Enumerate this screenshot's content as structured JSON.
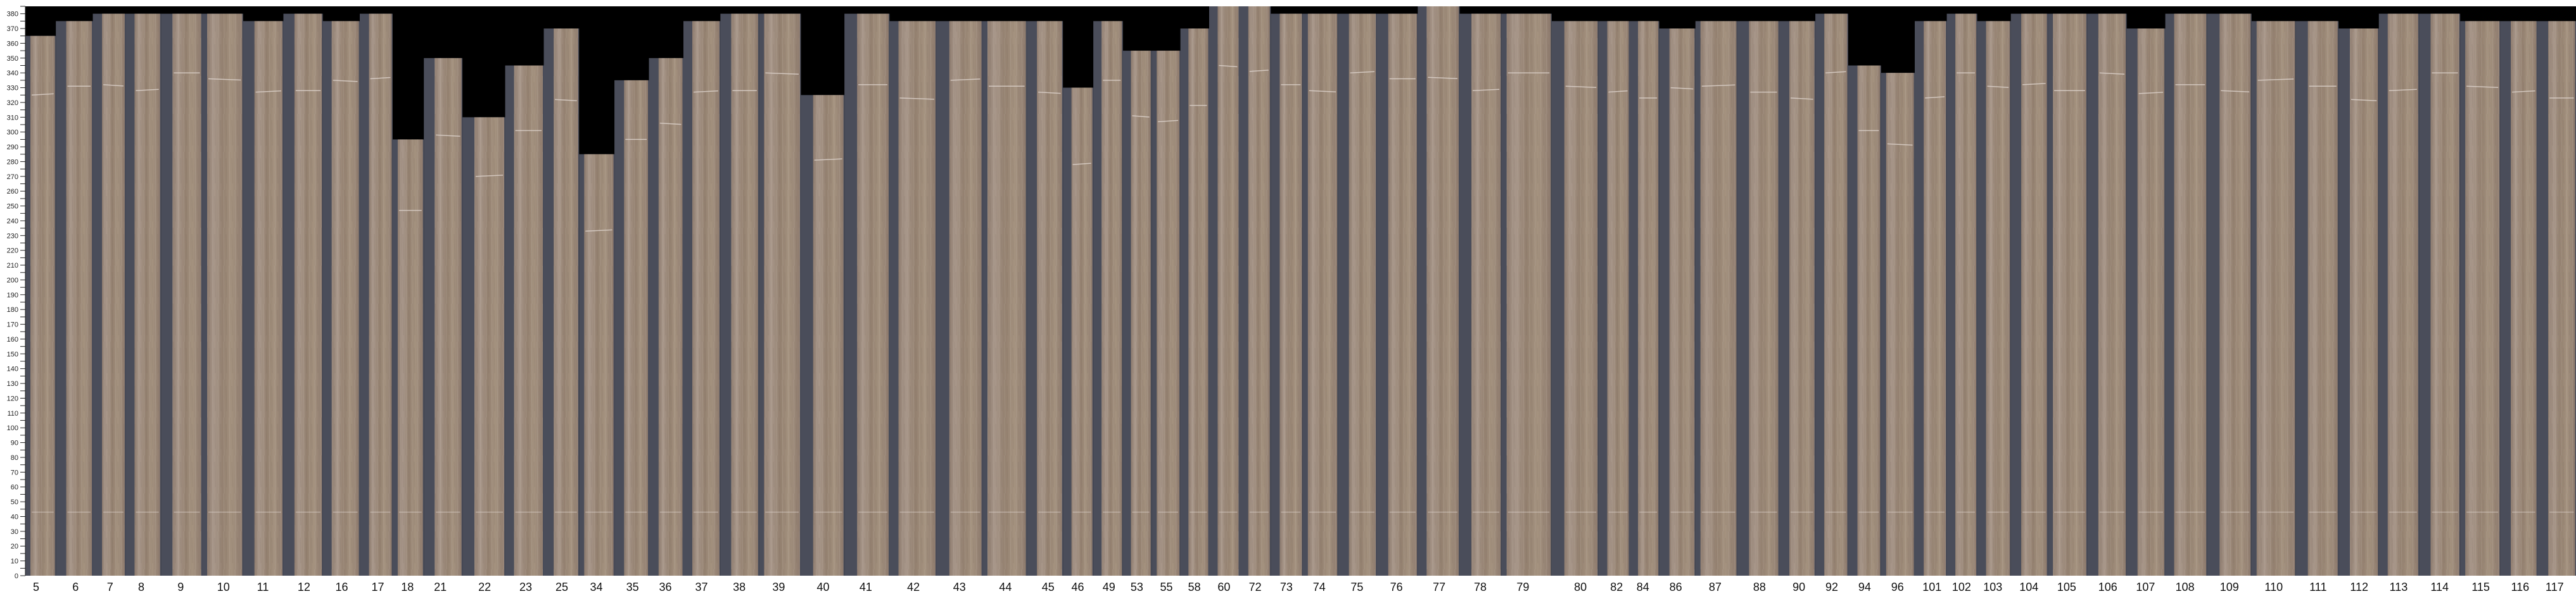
{
  "chart_data": {
    "type": "bar",
    "title": "",
    "xlabel": "",
    "ylabel": "",
    "ylim": [
      0,
      385
    ],
    "ytick_step": 5,
    "ylabel_step": 10,
    "grid": false,
    "colors": {
      "background": "#000000",
      "gap": "#4a4d5a",
      "wood": "#9c897b",
      "axis": "#222222"
    },
    "categories": [
      "5",
      "6",
      "7",
      "8",
      "9",
      "10",
      "11",
      "12",
      "16",
      "17",
      "18",
      "21",
      "22",
      "23",
      "25",
      "34",
      "35",
      "36",
      "37",
      "38",
      "39",
      "40",
      "41",
      "42",
      "43",
      "44",
      "45",
      "46",
      "49",
      "53",
      "55",
      "58",
      "60",
      "72",
      "73",
      "74",
      "75",
      "76",
      "77",
      "78",
      "79",
      "80",
      "82",
      "84",
      "86",
      "87",
      "88",
      "90",
      "92",
      "94",
      "96",
      "101",
      "102",
      "103",
      "104",
      "105",
      "106",
      "107",
      "108",
      "109",
      "110",
      "111",
      "112",
      "113",
      "114",
      "115",
      "116",
      "117"
    ],
    "values": [
      365,
      375,
      380,
      380,
      380,
      380,
      375,
      380,
      375,
      380,
      295,
      350,
      310,
      345,
      370,
      285,
      335,
      350,
      375,
      380,
      380,
      325,
      380,
      375,
      375,
      375,
      375,
      330,
      375,
      355,
      355,
      370,
      385,
      385,
      380,
      380,
      380,
      380,
      385,
      380,
      380,
      375,
      375,
      375,
      370,
      375,
      375,
      375,
      380,
      345,
      340,
      375,
      380,
      375,
      380,
      380,
      380,
      370,
      380,
      380,
      375,
      375,
      370,
      380,
      380,
      375,
      375,
      375
    ]
  }
}
